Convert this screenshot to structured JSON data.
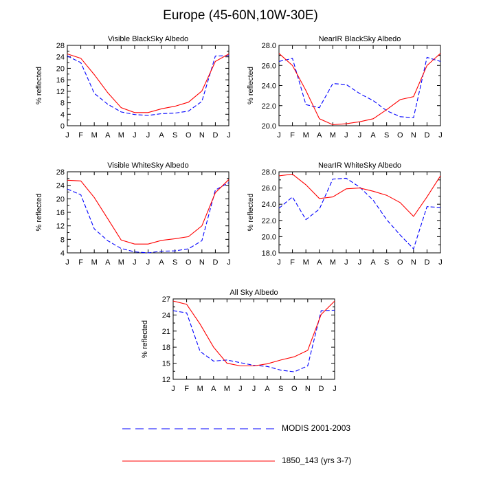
{
  "figure_title": "Europe (45-60N,10W-30E)",
  "colors": {
    "modis": "#0000ff",
    "model": "#ff0000",
    "axis": "#000000"
  },
  "legend": {
    "modis_label": "MODIS 2001-2003",
    "model_label": "1850_143 (yrs 3-7)"
  },
  "chart_data": [
    {
      "type": "line",
      "title": "Visible BlackSky Albedo",
      "xlabel": "",
      "ylabel": "% reflected",
      "categories": [
        "J",
        "F",
        "M",
        "A",
        "M",
        "J",
        "J",
        "A",
        "S",
        "O",
        "N",
        "D",
        "J"
      ],
      "ylim": [
        0,
        28
      ],
      "yticks": [
        0,
        4,
        8,
        12,
        16,
        20,
        24,
        28
      ],
      "ytick_labels": [
        "0",
        "4",
        "8",
        "12",
        "16",
        "20",
        "24",
        "28"
      ],
      "series": [
        {
          "name": "MODIS 2001-2003",
          "style": "dashed",
          "values": [
            24.3,
            22.0,
            11.3,
            7.5,
            4.8,
            3.9,
            3.6,
            4.2,
            4.4,
            5.1,
            8.5,
            24.3,
            24.4
          ]
        },
        {
          "name": "1850_143 (yrs 3-7)",
          "style": "solid",
          "values": [
            25.0,
            23.5,
            17.8,
            11.5,
            6.3,
            4.6,
            4.6,
            5.9,
            6.8,
            8.2,
            12.1,
            22.4,
            25.0
          ]
        }
      ]
    },
    {
      "type": "line",
      "title": "NearIR BlackSky Albedo",
      "xlabel": "",
      "ylabel": "% reflected",
      "categories": [
        "J",
        "F",
        "M",
        "A",
        "M",
        "J",
        "J",
        "A",
        "S",
        "O",
        "N",
        "D",
        "J"
      ],
      "ylim": [
        20,
        28
      ],
      "yticks": [
        20,
        22,
        24,
        26,
        28
      ],
      "ytick_labels": [
        "20.0",
        "22.0",
        "24.0",
        "26.0",
        "28.0"
      ],
      "series": [
        {
          "name": "MODIS 2001-2003",
          "style": "dashed",
          "values": [
            26.4,
            26.7,
            22.1,
            21.8,
            24.2,
            24.1,
            23.2,
            22.5,
            21.5,
            20.9,
            20.8,
            26.8,
            26.4
          ]
        },
        {
          "name": "1850_143 (yrs 3-7)",
          "style": "solid",
          "values": [
            27.2,
            26.0,
            23.5,
            20.7,
            20.1,
            20.2,
            20.4,
            20.7,
            21.6,
            22.6,
            22.9,
            26.0,
            27.2
          ]
        }
      ]
    },
    {
      "type": "line",
      "title": "Visible WhiteSky Albedo",
      "xlabel": "",
      "ylabel": "% reflected",
      "categories": [
        "J",
        "F",
        "M",
        "A",
        "M",
        "J",
        "J",
        "A",
        "S",
        "O",
        "N",
        "D",
        "J"
      ],
      "ylim": [
        4,
        28
      ],
      "yticks": [
        4,
        8,
        12,
        16,
        20,
        24,
        28
      ],
      "ytick_labels": [
        "4",
        "8",
        "12",
        "16",
        "20",
        "24",
        "28"
      ],
      "series": [
        {
          "name": "MODIS 2001-2003",
          "style": "dashed",
          "values": [
            22.9,
            21.2,
            11.1,
            7.6,
            5.3,
            4.3,
            4.0,
            4.5,
            4.6,
            5.2,
            7.6,
            22.6,
            24.8
          ]
        },
        {
          "name": "1850_143 (yrs 3-7)",
          "style": "solid",
          "values": [
            25.5,
            25.3,
            20.4,
            14.1,
            7.8,
            6.6,
            6.6,
            7.7,
            8.2,
            8.8,
            12.0,
            21.8,
            25.7
          ]
        }
      ]
    },
    {
      "type": "line",
      "title": "NearIR WhiteSky Albedo",
      "xlabel": "",
      "ylabel": "% reflected",
      "categories": [
        "J",
        "F",
        "M",
        "A",
        "M",
        "J",
        "J",
        "A",
        "S",
        "O",
        "N",
        "D",
        "J"
      ],
      "ylim": [
        18,
        28
      ],
      "yticks": [
        18,
        20,
        22,
        24,
        26,
        28
      ],
      "ytick_labels": [
        "18.0",
        "20.0",
        "22.0",
        "24.0",
        "26.0",
        "28.0"
      ],
      "series": [
        {
          "name": "MODIS 2001-2003",
          "style": "dashed",
          "values": [
            23.5,
            24.9,
            22.1,
            23.4,
            27.1,
            27.2,
            26.1,
            24.5,
            22.1,
            20.2,
            18.5,
            23.7,
            23.6
          ]
        },
        {
          "name": "1850_143 (yrs 3-7)",
          "style": "solid",
          "values": [
            27.5,
            27.7,
            26.4,
            24.7,
            24.9,
            25.9,
            26.0,
            25.6,
            25.1,
            24.2,
            22.5,
            24.9,
            27.5
          ]
        }
      ]
    },
    {
      "type": "line",
      "title": "All Sky Albedo",
      "xlabel": "",
      "ylabel": "% reflected",
      "categories": [
        "J",
        "F",
        "M",
        "A",
        "M",
        "J",
        "J",
        "A",
        "S",
        "O",
        "N",
        "D",
        "J"
      ],
      "ylim": [
        12,
        27
      ],
      "yticks": [
        12,
        15,
        18,
        21,
        24,
        27
      ],
      "ytick_labels": [
        "12",
        "15",
        "18",
        "21",
        "24",
        "27"
      ],
      "series": [
        {
          "name": "MODIS 2001-2003",
          "style": "dashed",
          "values": [
            24.8,
            24.4,
            17.2,
            15.4,
            15.6,
            15.1,
            14.6,
            14.4,
            13.7,
            13.4,
            14.5,
            24.8,
            24.9
          ]
        },
        {
          "name": "1850_143 (yrs 3-7)",
          "style": "solid",
          "values": [
            26.6,
            26.0,
            22.3,
            18.0,
            15.0,
            14.5,
            14.5,
            14.9,
            15.6,
            16.2,
            17.4,
            24.1,
            26.6
          ]
        }
      ]
    }
  ]
}
